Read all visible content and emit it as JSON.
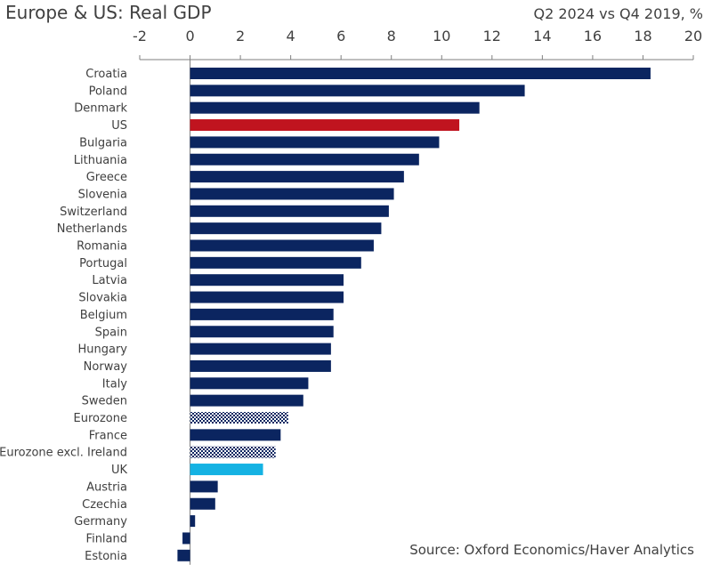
{
  "title": "Europe & US: Real GDP",
  "subtitle": "Q2 2024 vs Q4 2019, %",
  "source": "Source: Oxford Economics/Haver Analytics",
  "colors": {
    "default": "#0b2560",
    "US": "#c0141f",
    "UK": "#15b2e3",
    "pattern": "#0b2560",
    "axis": "#7f7f7f"
  },
  "chart_data": {
    "type": "bar",
    "orientation": "horizontal",
    "title": "Europe & US: Real GDP",
    "subtitle": "Q2 2024 vs Q4 2019, %",
    "xlim": [
      -2,
      20
    ],
    "xticks": [
      -2,
      0,
      2,
      4,
      6,
      8,
      10,
      12,
      14,
      16,
      18,
      20
    ],
    "axis_position": "top",
    "grid": false,
    "categories": [
      "Croatia",
      "Poland",
      "Denmark",
      "US",
      "Bulgaria",
      "Lithuania",
      "Greece",
      "Slovenia",
      "Switzerland",
      "Netherlands",
      "Romania",
      "Portugal",
      "Latvia",
      "Slovakia",
      "Belgium",
      "Spain",
      "Hungary",
      "Norway",
      "Italy",
      "Sweden",
      "Eurozone",
      "France",
      "Eurozone excl. Ireland",
      "UK",
      "Austria",
      "Czechia",
      "Germany",
      "Finland",
      "Estonia"
    ],
    "values": [
      18.3,
      13.3,
      11.5,
      10.7,
      9.9,
      9.1,
      8.5,
      8.1,
      7.9,
      7.6,
      7.3,
      6.8,
      6.1,
      6.1,
      5.7,
      5.7,
      5.6,
      5.6,
      4.7,
      4.5,
      3.9,
      3.6,
      3.4,
      2.9,
      1.1,
      1.0,
      0.2,
      -0.3,
      -0.5
    ],
    "styles": [
      "default",
      "default",
      "default",
      "US",
      "default",
      "default",
      "default",
      "default",
      "default",
      "default",
      "default",
      "default",
      "default",
      "default",
      "default",
      "default",
      "default",
      "default",
      "default",
      "default",
      "pattern",
      "default",
      "pattern",
      "UK",
      "default",
      "default",
      "default",
      "default",
      "default"
    ]
  }
}
